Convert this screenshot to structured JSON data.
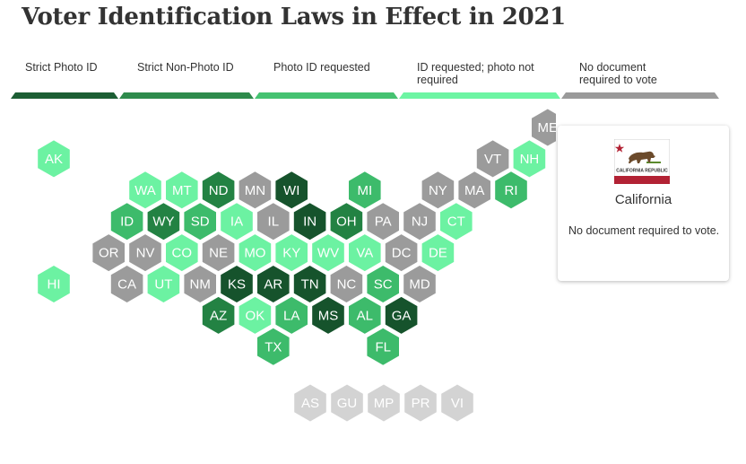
{
  "title": "Voter Identification Laws in Effect in 2021",
  "legend": [
    {
      "label": "Strict Photo ID",
      "color": "#1c5e34"
    },
    {
      "label": "Strict Non-Photo ID",
      "color": "#2e8b4c"
    },
    {
      "label": "Photo ID requested",
      "color": "#45c271"
    },
    {
      "label": "ID requested; photo not required",
      "color": "#6df5a3"
    },
    {
      "label": "No document required to vote",
      "color": "#9a9a9a"
    }
  ],
  "category_colors": {
    "strict_photo": "#16532c",
    "strict_nonphoto": "#238243",
    "photo_requested": "#3dbb6b",
    "id_requested": "#6cf2a2",
    "no_doc": "#9b9b9b",
    "territory": "#d3d3d3"
  },
  "states": [
    {
      "abbr": "ME",
      "category": "no_doc"
    },
    {
      "abbr": "AK",
      "category": "id_requested"
    },
    {
      "abbr": "VT",
      "category": "no_doc"
    },
    {
      "abbr": "NH",
      "category": "id_requested"
    },
    {
      "abbr": "WA",
      "category": "id_requested"
    },
    {
      "abbr": "MT",
      "category": "id_requested"
    },
    {
      "abbr": "ND",
      "category": "strict_nonphoto"
    },
    {
      "abbr": "MN",
      "category": "no_doc"
    },
    {
      "abbr": "WI",
      "category": "strict_photo"
    },
    {
      "abbr": "MI",
      "category": "photo_requested"
    },
    {
      "abbr": "NY",
      "category": "no_doc"
    },
    {
      "abbr": "MA",
      "category": "no_doc"
    },
    {
      "abbr": "RI",
      "category": "photo_requested"
    },
    {
      "abbr": "ID",
      "category": "photo_requested"
    },
    {
      "abbr": "WY",
      "category": "strict_nonphoto"
    },
    {
      "abbr": "SD",
      "category": "photo_requested"
    },
    {
      "abbr": "IA",
      "category": "id_requested"
    },
    {
      "abbr": "IL",
      "category": "no_doc"
    },
    {
      "abbr": "IN",
      "category": "strict_photo"
    },
    {
      "abbr": "OH",
      "category": "strict_nonphoto"
    },
    {
      "abbr": "PA",
      "category": "no_doc"
    },
    {
      "abbr": "NJ",
      "category": "no_doc"
    },
    {
      "abbr": "CT",
      "category": "id_requested"
    },
    {
      "abbr": "OR",
      "category": "no_doc"
    },
    {
      "abbr": "NV",
      "category": "no_doc"
    },
    {
      "abbr": "CO",
      "category": "id_requested"
    },
    {
      "abbr": "NE",
      "category": "no_doc"
    },
    {
      "abbr": "MO",
      "category": "id_requested"
    },
    {
      "abbr": "KY",
      "category": "id_requested"
    },
    {
      "abbr": "WV",
      "category": "id_requested"
    },
    {
      "abbr": "VA",
      "category": "id_requested"
    },
    {
      "abbr": "DC",
      "category": "no_doc"
    },
    {
      "abbr": "DE",
      "category": "id_requested"
    },
    {
      "abbr": "HI",
      "category": "id_requested"
    },
    {
      "abbr": "CA",
      "category": "no_doc"
    },
    {
      "abbr": "UT",
      "category": "id_requested"
    },
    {
      "abbr": "NM",
      "category": "no_doc"
    },
    {
      "abbr": "KS",
      "category": "strict_photo"
    },
    {
      "abbr": "AR",
      "category": "strict_photo"
    },
    {
      "abbr": "TN",
      "category": "strict_photo"
    },
    {
      "abbr": "NC",
      "category": "no_doc"
    },
    {
      "abbr": "SC",
      "category": "photo_requested"
    },
    {
      "abbr": "MD",
      "category": "no_doc"
    },
    {
      "abbr": "AZ",
      "category": "strict_nonphoto"
    },
    {
      "abbr": "OK",
      "category": "id_requested"
    },
    {
      "abbr": "LA",
      "category": "photo_requested"
    },
    {
      "abbr": "MS",
      "category": "strict_photo"
    },
    {
      "abbr": "AL",
      "category": "photo_requested"
    },
    {
      "abbr": "GA",
      "category": "strict_photo"
    },
    {
      "abbr": "TX",
      "category": "photo_requested"
    },
    {
      "abbr": "FL",
      "category": "photo_requested"
    },
    {
      "abbr": "AS",
      "category": "territory"
    },
    {
      "abbr": "GU",
      "category": "territory"
    },
    {
      "abbr": "MP",
      "category": "territory"
    },
    {
      "abbr": "PR",
      "category": "territory"
    },
    {
      "abbr": "VI",
      "category": "territory"
    }
  ],
  "info_card": {
    "flag_text": "CALIFORNIA REPUBLIC",
    "state_name": "California",
    "description": "No document required to vote."
  }
}
